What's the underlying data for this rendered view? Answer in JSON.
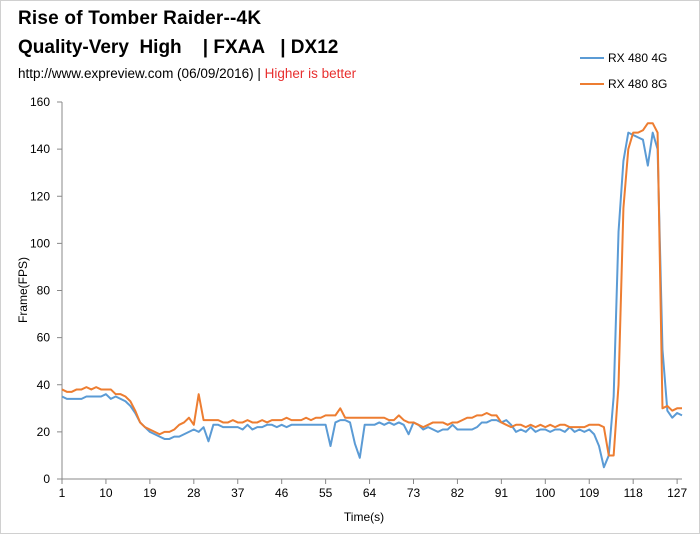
{
  "chart_data": {
    "type": "line",
    "title_line1": "Rise of Tomber Raider--4K",
    "title_line2": "Quality-Very  High    | FXAA   | DX12",
    "source": "http://www.expreview.com (06/09/2016)",
    "separator": " | ",
    "note": "Higher is better",
    "xlabel": "Time(s)",
    "ylabel": "Frame(FPS)",
    "xlim": [
      1,
      128
    ],
    "ylim": [
      0,
      160
    ],
    "xticks": [
      1,
      10,
      19,
      28,
      37,
      46,
      55,
      64,
      73,
      82,
      91,
      100,
      109,
      118,
      127
    ],
    "yticks": [
      0,
      20,
      40,
      60,
      80,
      100,
      120,
      140,
      160
    ],
    "legend_position": "top-right",
    "series": [
      {
        "name": "RX 480 4G",
        "color": "#5b9bd5",
        "values": [
          35,
          34,
          34,
          34,
          34,
          35,
          35,
          35,
          35,
          36,
          34,
          35,
          34,
          33,
          31,
          28,
          24,
          22,
          20,
          19,
          18,
          17,
          17,
          18,
          18,
          19,
          20,
          21,
          20,
          22,
          16,
          23,
          23,
          22,
          22,
          22,
          22,
          21,
          23,
          21,
          22,
          22,
          23,
          23,
          22,
          23,
          22,
          23,
          23,
          23,
          23,
          23,
          23,
          23,
          23,
          14,
          24,
          25,
          25,
          24,
          15,
          9,
          23,
          23,
          23,
          24,
          23,
          24,
          23,
          24,
          23,
          19,
          24,
          23,
          21,
          22,
          21,
          20,
          21,
          21,
          23,
          21,
          21,
          21,
          21,
          22,
          24,
          24,
          25,
          25,
          24,
          25,
          23,
          20,
          21,
          20,
          22,
          20,
          21,
          21,
          20,
          21,
          21,
          20,
          22,
          20,
          21,
          20,
          21,
          19,
          14,
          5,
          10,
          35,
          105,
          135,
          147,
          146,
          145,
          144,
          133,
          147,
          140,
          55,
          29,
          26,
          28,
          27
        ]
      },
      {
        "name": "RX 480 8G",
        "color": "#ed7d31",
        "values": [
          38,
          37,
          37,
          38,
          38,
          39,
          38,
          39,
          38,
          38,
          38,
          36,
          36,
          35,
          33,
          29,
          24,
          22,
          21,
          20,
          19,
          20,
          20,
          21,
          23,
          24,
          26,
          23,
          36,
          25,
          25,
          25,
          25,
          24,
          24,
          25,
          24,
          24,
          25,
          24,
          24,
          25,
          24,
          25,
          25,
          25,
          26,
          25,
          25,
          25,
          26,
          25,
          26,
          26,
          27,
          27,
          27,
          30,
          26,
          26,
          26,
          26,
          26,
          26,
          26,
          26,
          26,
          25,
          25,
          27,
          25,
          24,
          24,
          23,
          22,
          23,
          24,
          24,
          24,
          23,
          24,
          24,
          25,
          26,
          26,
          27,
          27,
          28,
          27,
          27,
          24,
          23,
          22,
          23,
          23,
          22,
          23,
          22,
          23,
          22,
          23,
          22,
          23,
          23,
          22,
          22,
          22,
          22,
          23,
          23,
          23,
          22,
          10,
          10,
          40,
          115,
          140,
          147,
          147,
          148,
          151,
          151,
          147,
          30,
          31,
          29,
          30,
          30
        ]
      }
    ]
  }
}
